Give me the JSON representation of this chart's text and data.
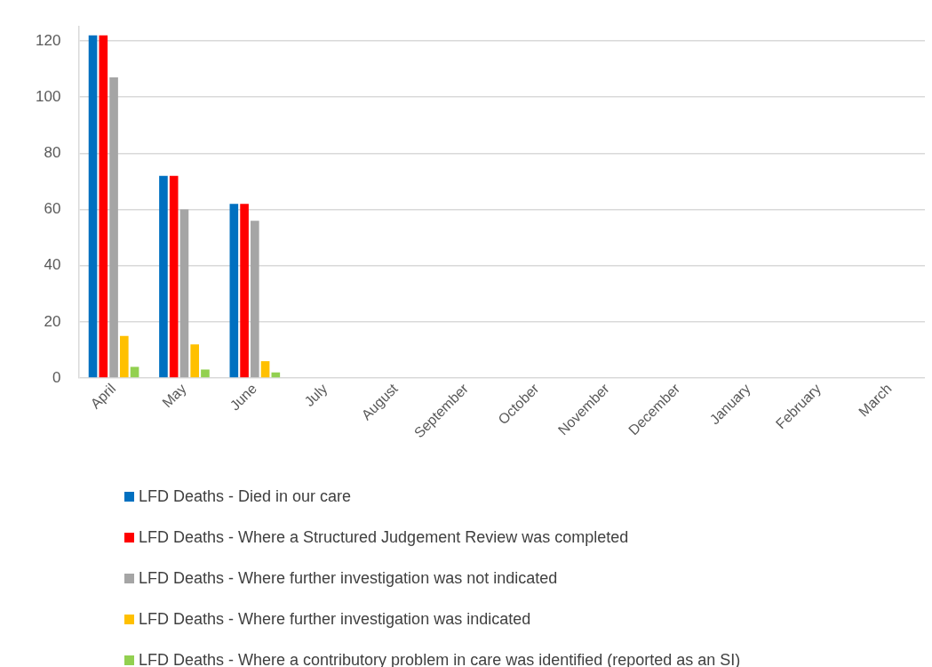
{
  "chart_data": {
    "type": "bar",
    "categories": [
      "April",
      "May",
      "June",
      "July",
      "August",
      "September",
      "October",
      "November",
      "December",
      "January",
      "February",
      "March"
    ],
    "series": [
      {
        "name": "LFD Deaths - Died in our care",
        "color": "#0070c0",
        "values": [
          122,
          72,
          62,
          null,
          null,
          null,
          null,
          null,
          null,
          null,
          null,
          null
        ]
      },
      {
        "name": "LFD Deaths - Where a Structured Judgement Review was completed",
        "color": "#ff0000",
        "values": [
          122,
          72,
          62,
          null,
          null,
          null,
          null,
          null,
          null,
          null,
          null,
          null
        ]
      },
      {
        "name": "LFD Deaths - Where further investigation was not indicated",
        "color": "#a5a5a5",
        "values": [
          107,
          60,
          56,
          null,
          null,
          null,
          null,
          null,
          null,
          null,
          null,
          null
        ]
      },
      {
        "name": "LFD Deaths - Where further investigation was indicated",
        "color": "#ffc000",
        "values": [
          15,
          12,
          6,
          null,
          null,
          null,
          null,
          null,
          null,
          null,
          null,
          null
        ]
      },
      {
        "name": "LFD Deaths - Where a contributory problem in care was identified (reported as an SI)",
        "color": "#92d050",
        "values": [
          4,
          3,
          2,
          null,
          null,
          null,
          null,
          null,
          null,
          null,
          null,
          null
        ]
      }
    ],
    "ylim": [
      0,
      125
    ],
    "yticks": [
      0,
      20,
      40,
      60,
      80,
      100,
      120
    ],
    "grid": "y",
    "legend": "bottom"
  }
}
